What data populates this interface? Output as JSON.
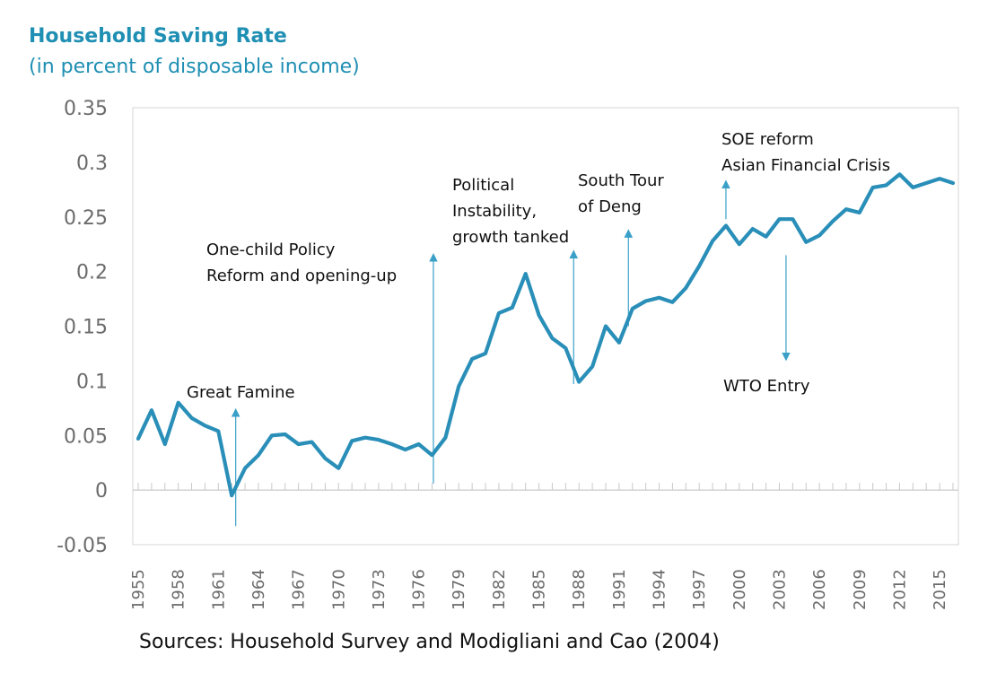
{
  "title": "Household Saving Rate",
  "subtitle": "(in percent of disposable income)",
  "source": "Sources: Household Survey and Modigliani and Cao (2004)",
  "colors": {
    "line": "#2a8fb8",
    "title": "#1f8fb3",
    "arrow": "#3aa0c8"
  },
  "chart_data": {
    "type": "line",
    "title": "Household Saving Rate",
    "subtitle": "(in percent of disposable income)",
    "xlabel": "",
    "ylabel": "",
    "ylim": [
      -0.05,
      0.35
    ],
    "xlim": [
      1955,
      2016
    ],
    "grid": false,
    "y_ticks": [
      "0.35",
      "0.3",
      "0.25",
      "0.2",
      "0.15",
      "0.1",
      "0.05",
      "0",
      "-0.05"
    ],
    "x_ticks": [
      "1955",
      "1958",
      "1961",
      "1964",
      "1967",
      "1970",
      "1973",
      "1976",
      "1979",
      "1982",
      "1985",
      "1988",
      "1991",
      "1994",
      "1997",
      "2000",
      "2003",
      "2006",
      "2009",
      "2012",
      "2015"
    ],
    "series": [
      {
        "x": [
          1955,
          1956,
          1957,
          1958,
          1959,
          1960,
          1961,
          1962,
          1963,
          1964,
          1965,
          1966,
          1967,
          1968,
          1969,
          1970,
          1971,
          1972,
          1973,
          1974,
          1975,
          1976,
          1977,
          1978,
          1979,
          1980,
          1981,
          1982,
          1983,
          1984,
          1985,
          1986,
          1987,
          1988,
          1989,
          1990,
          1991,
          1992,
          1993,
          1994,
          1995,
          1996,
          1997,
          1998,
          1999,
          2000,
          2001,
          2002,
          2003,
          2004,
          2005,
          2006,
          2007,
          2008,
          2009,
          2010,
          2011,
          2012,
          2013,
          2014,
          2015,
          2016
        ],
        "values": [
          0.047,
          0.073,
          0.042,
          0.08,
          0.066,
          0.059,
          0.054,
          -0.005,
          0.02,
          0.032,
          0.05,
          0.051,
          0.042,
          0.044,
          0.029,
          0.02,
          0.045,
          0.048,
          0.046,
          0.042,
          0.037,
          0.042,
          0.032,
          0.048,
          0.095,
          0.12,
          0.125,
          0.162,
          0.167,
          0.198,
          0.16,
          0.139,
          0.13,
          0.099,
          0.113,
          0.15,
          0.135,
          0.166,
          0.173,
          0.176,
          0.172,
          0.185,
          0.205,
          0.228,
          0.242,
          0.225,
          0.239,
          0.232,
          0.248,
          0.248,
          0.227,
          0.233,
          0.246,
          0.257,
          0.254,
          0.277,
          0.279,
          0.289,
          0.277,
          0.281,
          0.285,
          0.281
        ]
      }
    ],
    "annotations": [
      {
        "id": "great-famine",
        "lines": [
          "Great Famine"
        ],
        "arrow": {
          "x": 1962.3,
          "from": -0.033,
          "to": 0.071
        }
      },
      {
        "id": "one-child",
        "lines": [
          "One-child Policy",
          "Reform and opening-up"
        ],
        "arrow": {
          "x": 1977.1,
          "from": 0.006,
          "to": 0.213
        }
      },
      {
        "id": "political",
        "lines": [
          "Political",
          "Instability,",
          "growth tanked"
        ],
        "arrow": {
          "x": 1987.6,
          "from": 0.097,
          "to": 0.216
        }
      },
      {
        "id": "south-tour",
        "lines": [
          "South Tour",
          "of Deng"
        ],
        "arrow": {
          "x": 1991.7,
          "from": 0.15,
          "to": 0.235
        }
      },
      {
        "id": "soe",
        "lines": [
          "SOE reform",
          "Asian Financial Crisis"
        ],
        "arrow": {
          "x": 1999.0,
          "from": 0.248,
          "to": 0.28
        }
      },
      {
        "id": "wto",
        "lines": [
          "WTO Entry"
        ],
        "arrow": {
          "x": 2003.5,
          "from": 0.215,
          "to": 0.122
        }
      }
    ]
  }
}
